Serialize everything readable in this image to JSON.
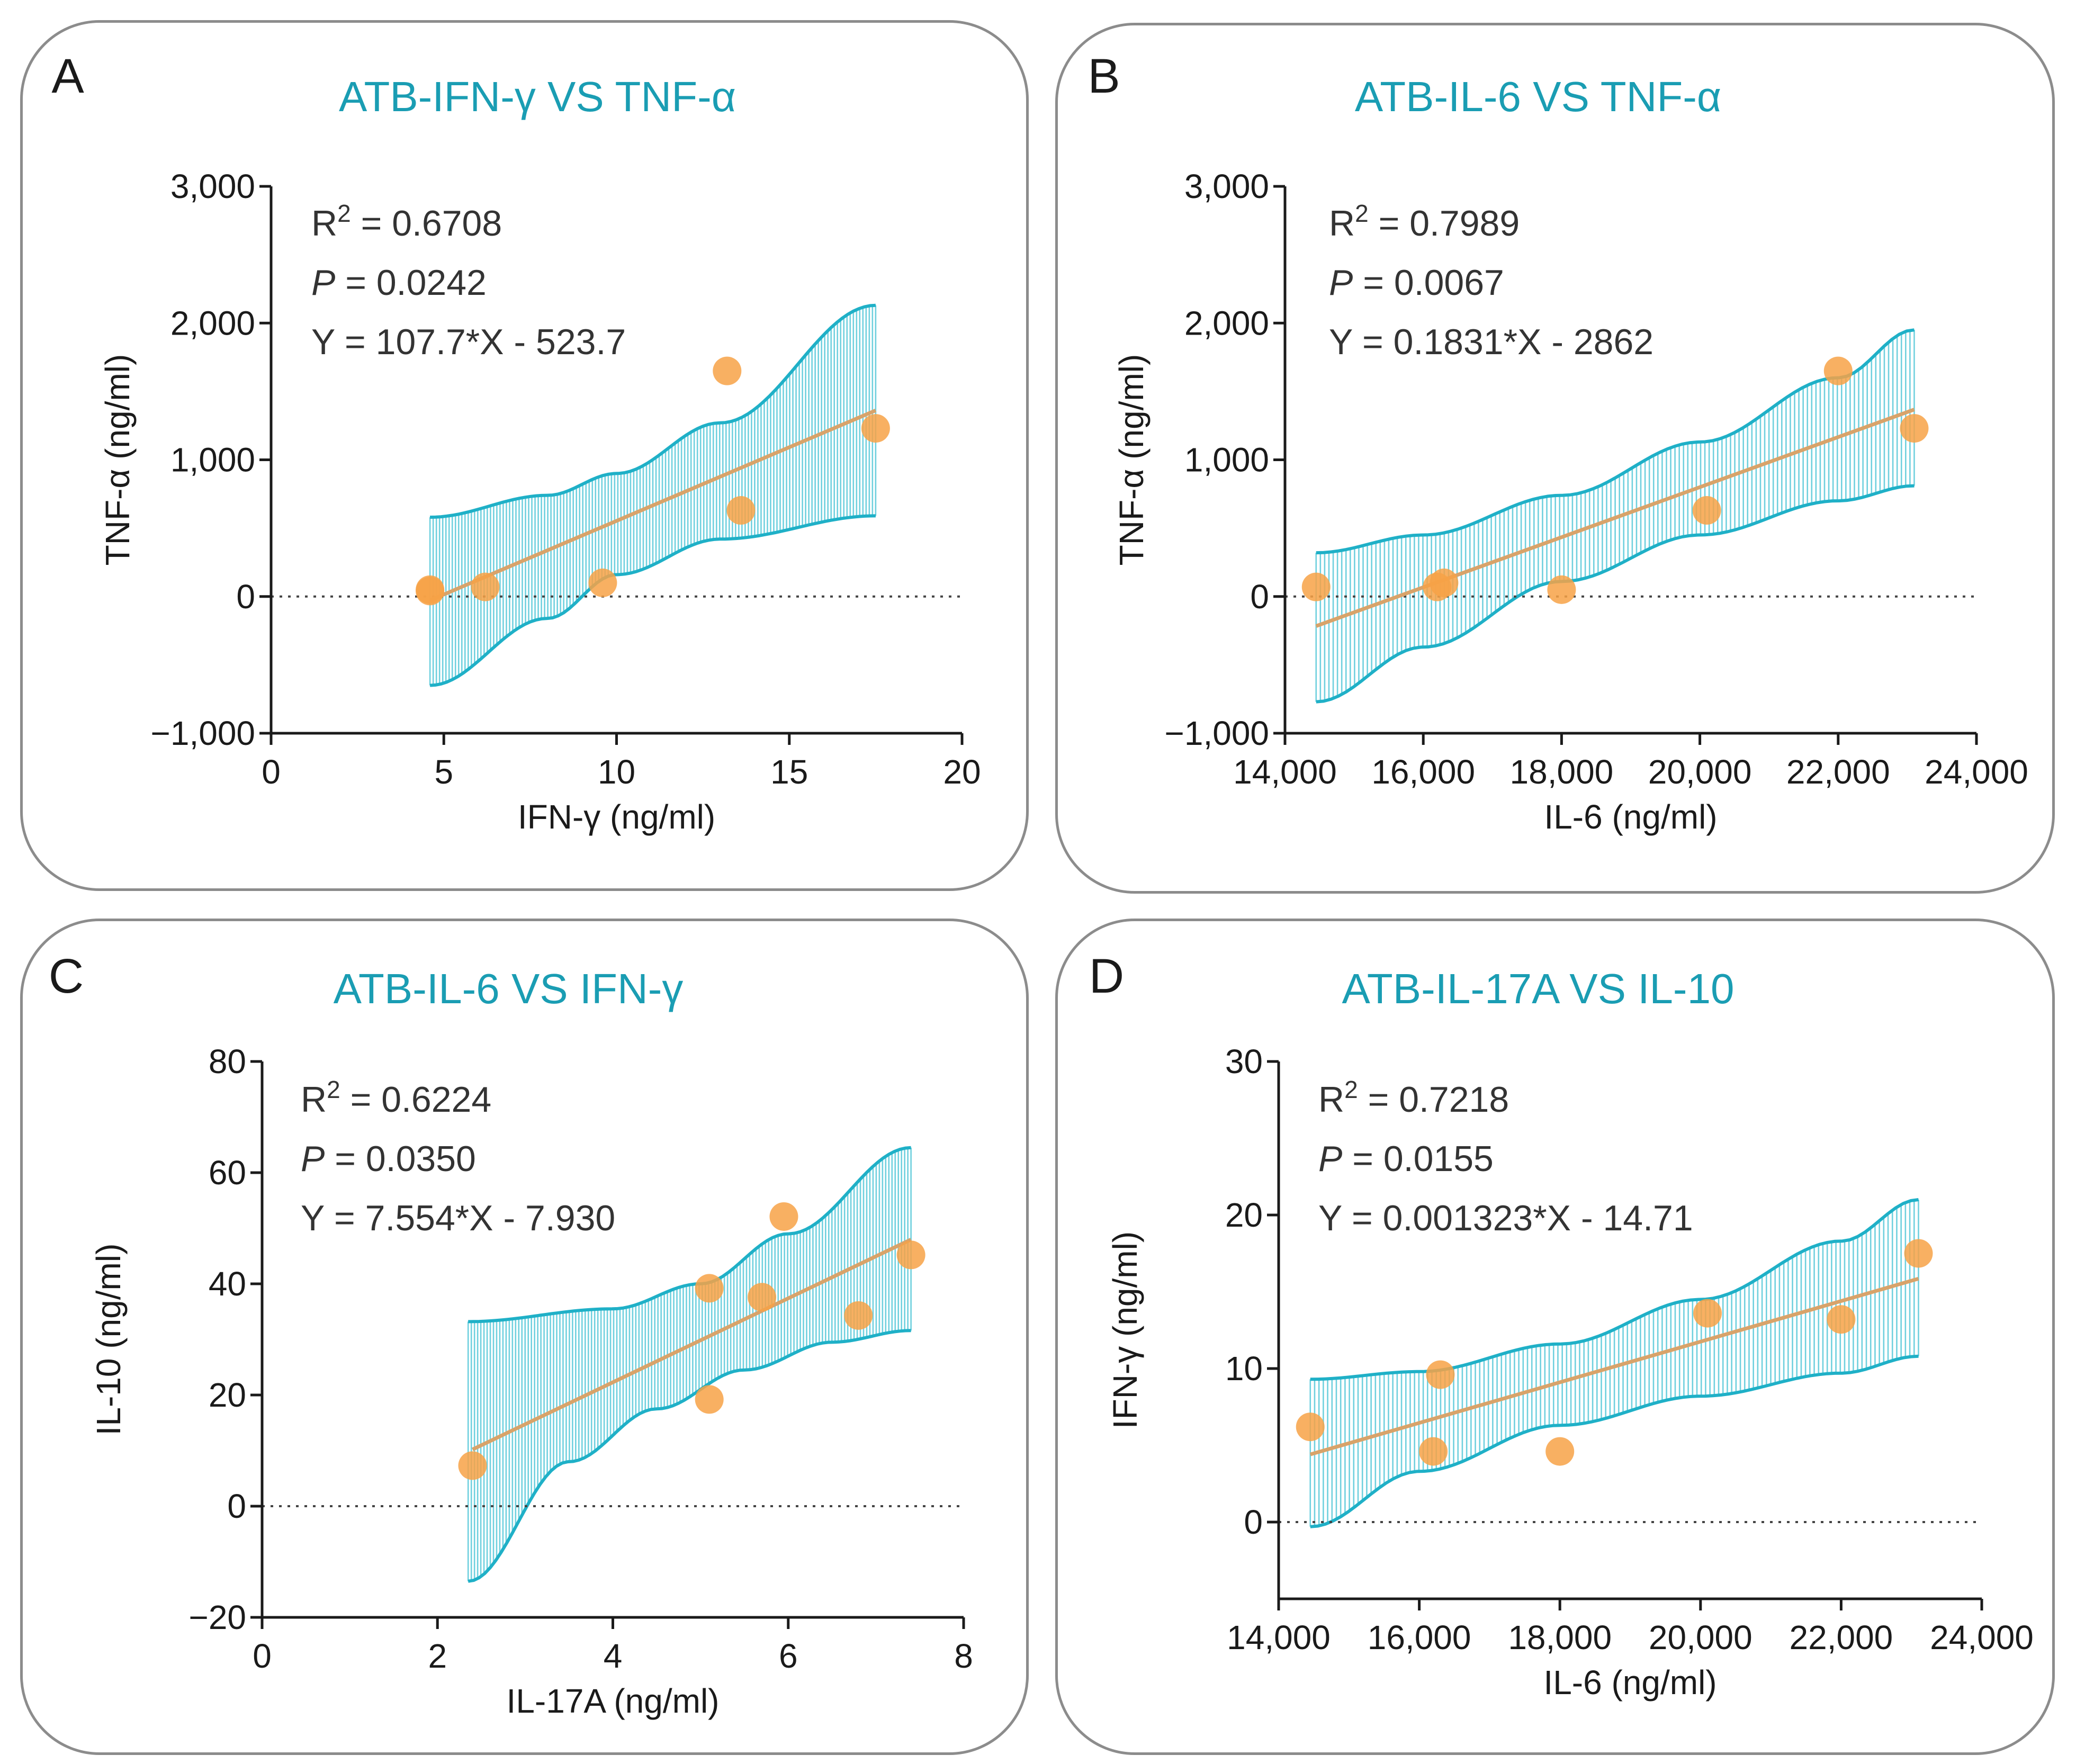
{
  "figure": {
    "colors": {
      "title": "#1a9db3",
      "band_line": "#1fb0c7",
      "band_fill": "#6fd0de",
      "regression": "#d8a36a",
      "point": "#f7a247",
      "axis": "#1a1a1a",
      "frame": "#8c8c8c"
    }
  },
  "chart_data": [
    {
      "panel": "A",
      "type": "scatter",
      "title": "ATB-IFN-γ VS TNF-α",
      "xlabel": "IFN-γ (ng/ml)",
      "ylabel": "TNF-α (ng/ml)",
      "xlim": [
        0,
        20
      ],
      "ylim": [
        -1000,
        3000
      ],
      "xticks": [
        0,
        5,
        10,
        15,
        20
      ],
      "xtick_labels": [
        "0",
        "5",
        "10",
        "15",
        "20"
      ],
      "yticks": [
        -1000,
        0,
        1000,
        2000,
        3000
      ],
      "ytick_labels": [
        "−1,000",
        "0",
        "1,000",
        "2,000",
        "3,000"
      ],
      "r2_label": "R",
      "r2_sup": "2",
      "r2_value": " = 0.6708",
      "p_label": "P",
      "p_value": " = 0.0242",
      "equation": "Y = 107.7*X - 523.7",
      "points": [
        [
          4.6,
          50
        ],
        [
          4.6,
          40
        ],
        [
          6.2,
          70
        ],
        [
          9.6,
          100
        ],
        [
          13.2,
          1650
        ],
        [
          13.6,
          630
        ],
        [
          17.5,
          1230
        ]
      ],
      "fit": {
        "x0": 4.6,
        "x1": 17.5,
        "slope": 107.7,
        "intercept": -523.7
      },
      "band": {
        "upper": [
          [
            4.6,
            580
          ],
          [
            8,
            740
          ],
          [
            10,
            900
          ],
          [
            13,
            1270
          ],
          [
            17.5,
            2130
          ]
        ],
        "lower": [
          [
            4.6,
            -650
          ],
          [
            8,
            -160
          ],
          [
            10,
            160
          ],
          [
            13,
            420
          ],
          [
            17.5,
            590
          ]
        ]
      }
    },
    {
      "panel": "B",
      "type": "scatter",
      "title": "ATB-IL-6 VS TNF-α",
      "xlabel": "IL-6 (ng/ml)",
      "ylabel": "TNF-α (ng/ml)",
      "xlim": [
        14000,
        24000
      ],
      "ylim": [
        -1000,
        3000
      ],
      "xticks": [
        14000,
        16000,
        18000,
        20000,
        22000,
        24000
      ],
      "xtick_labels": [
        "14,000",
        "16,000",
        "18,000",
        "20,000",
        "22,000",
        "24,000"
      ],
      "yticks": [
        -1000,
        0,
        1000,
        2000,
        3000
      ],
      "ytick_labels": [
        "−1,000",
        "0",
        "1,000",
        "2,000",
        "3,000"
      ],
      "r2_label": "R",
      "r2_sup": "2",
      "r2_value": " = 0.7989",
      "p_label": "P",
      "p_value": " = 0.0067",
      "equation": "Y = 0.1831*X - 2862",
      "points": [
        [
          14450,
          70
        ],
        [
          16200,
          70
        ],
        [
          16300,
          100
        ],
        [
          18000,
          50
        ],
        [
          20100,
          630
        ],
        [
          22000,
          1650
        ],
        [
          23100,
          1230
        ]
      ],
      "fit": {
        "x0": 14450,
        "x1": 23100,
        "slope": 0.1831,
        "intercept": -2862
      },
      "band": {
        "upper": [
          [
            14450,
            320
          ],
          [
            16000,
            450
          ],
          [
            18000,
            740
          ],
          [
            20000,
            1130
          ],
          [
            22000,
            1600
          ],
          [
            23100,
            1950
          ]
        ],
        "lower": [
          [
            14450,
            -770
          ],
          [
            16000,
            -370
          ],
          [
            18000,
            110
          ],
          [
            20000,
            450
          ],
          [
            22000,
            700
          ],
          [
            23100,
            810
          ]
        ]
      }
    },
    {
      "panel": "C",
      "type": "scatter",
      "title": "ATB-IL-6 VS IFN-γ",
      "xlabel": "IL-17A (ng/ml)",
      "ylabel": "IL-10 (ng/ml)",
      "xlim": [
        0,
        8
      ],
      "ylim": [
        -20,
        80
      ],
      "xticks": [
        0,
        2,
        4,
        6,
        8
      ],
      "xtick_labels": [
        "0",
        "2",
        "4",
        "6",
        "8"
      ],
      "yticks": [
        -20,
        0,
        20,
        40,
        60,
        80
      ],
      "ytick_labels": [
        "−20",
        "0",
        "20",
        "40",
        "60",
        "80"
      ],
      "r2_label": "R",
      "r2_sup": "2",
      "r2_value": " = 0.6224",
      "p_label": "P",
      "p_value": " = 0.0350",
      "equation": "Y = 7.554*X - 7.930",
      "points": [
        [
          2.4,
          7.3
        ],
        [
          5.1,
          39.2
        ],
        [
          5.1,
          19.2
        ],
        [
          5.7,
          37.6
        ],
        [
          5.95,
          52.1
        ],
        [
          6.8,
          34.3
        ],
        [
          7.4,
          45.2
        ]
      ],
      "fit": {
        "x0": 2.4,
        "x1": 7.4,
        "slope": 7.554,
        "intercept": -7.93
      },
      "band": {
        "upper": [
          [
            2.35,
            33.2
          ],
          [
            4.0,
            35.5
          ],
          [
            5.0,
            40.0
          ],
          [
            6.0,
            49.0
          ],
          [
            7.4,
            64.5
          ]
        ],
        "lower": [
          [
            2.35,
            -13.5
          ],
          [
            3.5,
            8.0
          ],
          [
            4.5,
            17.5
          ],
          [
            5.5,
            24.5
          ],
          [
            6.5,
            29.5
          ],
          [
            7.4,
            31.6
          ]
        ]
      }
    },
    {
      "panel": "D",
      "type": "scatter",
      "title": "ATB-IL-17A VS IL-10",
      "xlabel": "IL-6 (ng/ml)",
      "ylabel": "IFN-γ (ng/ml)",
      "xlim": [
        14000,
        24000
      ],
      "ylim": [
        -5,
        30
      ],
      "xticks": [
        14000,
        16000,
        18000,
        20000,
        22000,
        24000
      ],
      "xtick_labels": [
        "14,000",
        "16,000",
        "18,000",
        "20,000",
        "22,000",
        "24,000"
      ],
      "yticks": [
        0,
        10,
        20,
        30
      ],
      "ytick_labels": [
        "0",
        "10",
        "20",
        "30"
      ],
      "r2_label": "R",
      "r2_sup": "2",
      "r2_value": " = 0.7218",
      "p_label": "P",
      "p_value": " = 0.0155",
      "equation": "Y = 0.001323*X - 14.71",
      "points": [
        [
          14450,
          6.2
        ],
        [
          16200,
          4.6
        ],
        [
          16300,
          9.6
        ],
        [
          18000,
          4.6
        ],
        [
          20100,
          13.6
        ],
        [
          22000,
          13.2
        ],
        [
          23100,
          17.5
        ]
      ],
      "fit": {
        "x0": 14450,
        "x1": 23100,
        "slope": 0.001323,
        "intercept": -14.71
      },
      "band": {
        "upper": [
          [
            14450,
            9.3
          ],
          [
            16000,
            9.8
          ],
          [
            18000,
            11.6
          ],
          [
            20000,
            14.5
          ],
          [
            22000,
            18.3
          ],
          [
            23100,
            21.0
          ]
        ],
        "lower": [
          [
            14450,
            -0.3
          ],
          [
            16000,
            3.3
          ],
          [
            18000,
            6.3
          ],
          [
            20000,
            8.2
          ],
          [
            22000,
            9.7
          ],
          [
            23100,
            10.8
          ]
        ]
      }
    }
  ]
}
